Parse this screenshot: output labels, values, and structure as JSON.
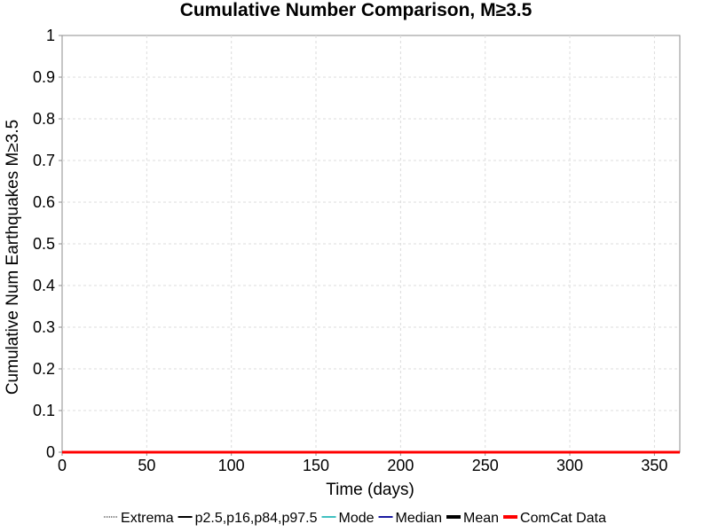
{
  "chart_data": {
    "type": "line",
    "title": "Cumulative Number Comparison, M≥3.5",
    "xlabel": "Time (days)",
    "ylabel": "Cumulative Num Earthquakes M≥3.5",
    "xlim": [
      0,
      365
    ],
    "ylim": [
      0,
      1
    ],
    "grid": true,
    "legend_position": "bottom",
    "x_ticks": [
      "0",
      "50",
      "100",
      "150",
      "200",
      "250",
      "300",
      "350"
    ],
    "y_ticks": [
      "0",
      "0.1",
      "0.2",
      "0.3",
      "0.4",
      "0.5",
      "0.6",
      "0.7",
      "0.8",
      "0.9",
      "1"
    ],
    "legend": [
      {
        "label": "Extrema",
        "color": "#000000",
        "style": "dotted"
      },
      {
        "label": "p2.5,p16,p84,p97.5",
        "color": "#000000",
        "style": "solid"
      },
      {
        "label": "Mode",
        "color": "#40c0c0",
        "style": "solid"
      },
      {
        "label": "Median",
        "color": "#1a1aa0",
        "style": "solid"
      },
      {
        "label": "Mean",
        "color": "#000000",
        "style": "solid-thick"
      },
      {
        "label": "ComCat Data",
        "color": "#ff0000",
        "style": "solid-thick"
      }
    ],
    "series": [
      {
        "name": "ComCat Data",
        "color": "#ff0000",
        "x": [
          0,
          365
        ],
        "y": [
          0,
          0
        ]
      }
    ]
  }
}
